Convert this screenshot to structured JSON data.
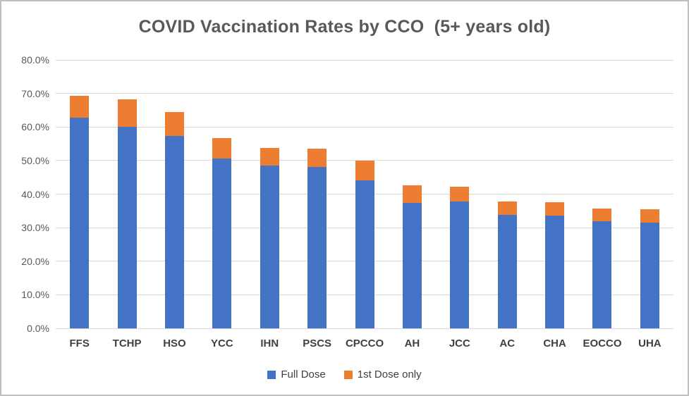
{
  "window": {
    "background": "#FFFFFF",
    "border_color": "#BFBFBF"
  },
  "chart_data": {
    "type": "bar",
    "stacked": true,
    "title": "COVID Vaccination Rates by CCO  (5+ years old)",
    "categories": [
      "FFS",
      "TCHP",
      "HSO",
      "YCC",
      "IHN",
      "PSCS",
      "CPCCO",
      "AH",
      "JCC",
      "AC",
      "CHA",
      "EOCCO",
      "UHA"
    ],
    "series": [
      {
        "name": "Full Dose",
        "color": "#4472C4",
        "values": [
          62.7,
          60.0,
          57.4,
          50.7,
          48.5,
          48.0,
          44.2,
          37.4,
          37.9,
          33.9,
          33.7,
          32.0,
          31.4
        ]
      },
      {
        "name": "1st Dose only",
        "color": "#ED7D31",
        "values": [
          6.5,
          8.3,
          7.0,
          6.1,
          5.2,
          5.5,
          5.8,
          5.2,
          4.4,
          3.9,
          3.8,
          3.8,
          4.1
        ]
      }
    ],
    "ylim": [
      0,
      80
    ],
    "ytick_step": 10,
    "ytick_labels": [
      "0.0%",
      "10.0%",
      "20.0%",
      "30.0%",
      "40.0%",
      "50.0%",
      "60.0%",
      "70.0%",
      "80.0%"
    ],
    "grid": true,
    "legend_position": "bottom",
    "colors": {
      "gridline": "#D9D9D9",
      "axis_text": "#595959",
      "category_text": "#404040",
      "title_text": "#595959"
    }
  }
}
